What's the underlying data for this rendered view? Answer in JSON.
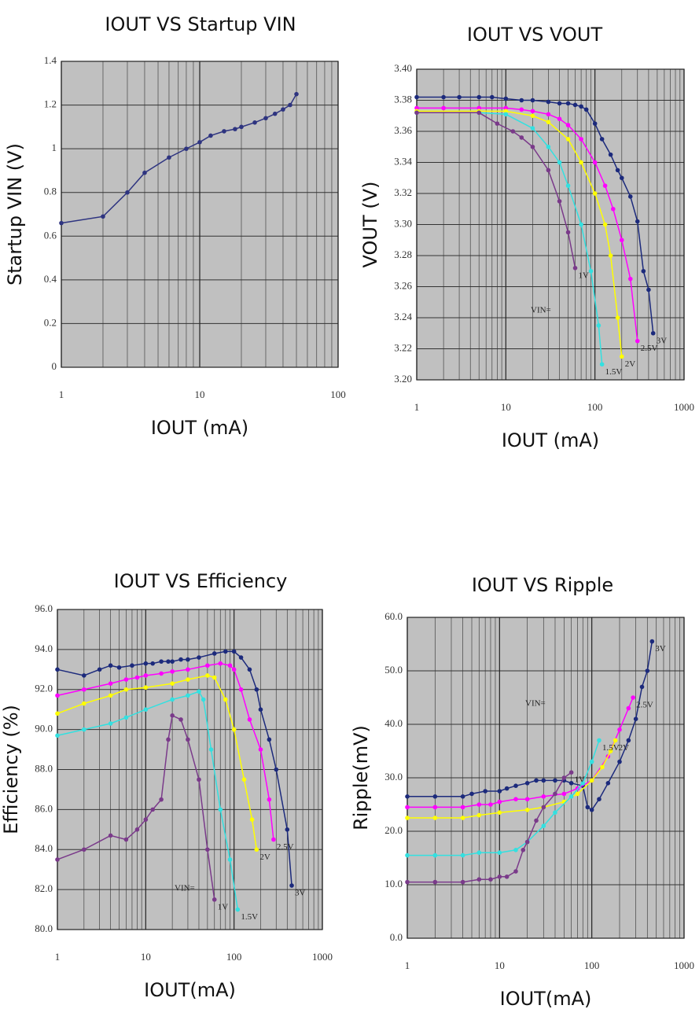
{
  "chart_data": [
    {
      "type": "line",
      "title": "IOUT VS Startup VIN",
      "xlabel": "IOUT (mA)",
      "ylabel": "Startup VIN (V)",
      "xscale": "log",
      "xlim": [
        1,
        100
      ],
      "xticks": [
        1,
        10,
        100
      ],
      "ylim": [
        0,
        1.4
      ],
      "yticks": [
        0,
        0.2,
        0.4,
        0.6,
        0.8,
        1,
        1.2,
        1.4
      ],
      "grid": true,
      "series": [
        {
          "color": "#2e3480",
          "x": [
            1,
            2,
            3,
            4,
            6,
            8,
            10,
            12,
            15,
            18,
            20,
            25,
            30,
            35,
            40,
            45,
            50
          ],
          "values": [
            0.66,
            0.69,
            0.8,
            0.89,
            0.96,
            1.0,
            1.03,
            1.06,
            1.08,
            1.09,
            1.1,
            1.12,
            1.14,
            1.16,
            1.18,
            1.2,
            1.25
          ]
        }
      ]
    },
    {
      "type": "line",
      "title": "IOUT VS VOUT",
      "xlabel": "IOUT (mA)",
      "ylabel": "VOUT (V)",
      "annotation": "VIN=",
      "xscale": "log",
      "xlim": [
        1,
        1000
      ],
      "xticks": [
        1,
        10,
        100,
        1000
      ],
      "ylim": [
        3.2,
        3.4
      ],
      "yticks": [
        {
          "value": 3.2,
          "label": "3.20"
        },
        {
          "value": 3.22,
          "label": "3.22"
        },
        {
          "value": 3.24,
          "label": "3.24"
        },
        {
          "value": 3.26,
          "label": "3.26"
        },
        {
          "value": 3.28,
          "label": "3.28"
        },
        {
          "value": 3.3,
          "label": "3.30"
        },
        {
          "value": 3.32,
          "label": "3.32"
        },
        {
          "value": 3.34,
          "label": "3.34"
        },
        {
          "value": 3.36,
          "label": "3.36"
        },
        {
          "value": 3.38,
          "label": "3.38"
        },
        {
          "value": 3.4,
          "label": "3.40"
        }
      ],
      "grid": true,
      "series": [
        {
          "name": "3V",
          "color": "#1c2a7c",
          "x": [
            1,
            2,
            3,
            5,
            7,
            10,
            15,
            20,
            30,
            40,
            50,
            60,
            70,
            80,
            100,
            120,
            150,
            180,
            200,
            250,
            300,
            350,
            400,
            450
          ],
          "values": [
            3.382,
            3.382,
            3.382,
            3.382,
            3.382,
            3.381,
            3.38,
            3.38,
            3.379,
            3.378,
            3.378,
            3.377,
            3.376,
            3.374,
            3.365,
            3.355,
            3.345,
            3.335,
            3.33,
            3.318,
            3.302,
            3.27,
            3.258,
            3.23
          ]
        },
        {
          "name": "2.5V",
          "color": "#ff00ff",
          "x": [
            1,
            2,
            5,
            10,
            15,
            20,
            30,
            40,
            50,
            70,
            100,
            130,
            160,
            200,
            250,
            300
          ],
          "values": [
            3.375,
            3.375,
            3.375,
            3.375,
            3.374,
            3.373,
            3.371,
            3.368,
            3.364,
            3.355,
            3.34,
            3.325,
            3.31,
            3.29,
            3.265,
            3.225
          ]
        },
        {
          "name": "2V",
          "color": "#ffff00",
          "x": [
            1,
            5,
            10,
            20,
            30,
            50,
            70,
            100,
            130,
            150,
            180,
            200
          ],
          "values": [
            3.373,
            3.373,
            3.373,
            3.37,
            3.366,
            3.355,
            3.34,
            3.32,
            3.3,
            3.28,
            3.24,
            3.215
          ]
        },
        {
          "name": "1.5V",
          "color": "#33e0e0",
          "x": [
            1,
            5,
            10,
            20,
            30,
            40,
            50,
            70,
            90,
            110,
            120
          ],
          "values": [
            3.372,
            3.372,
            3.371,
            3.362,
            3.35,
            3.34,
            3.325,
            3.3,
            3.27,
            3.235,
            3.21
          ]
        },
        {
          "name": "1V",
          "color": "#7a3a8a",
          "x": [
            1,
            5,
            8,
            12,
            15,
            20,
            30,
            40,
            50,
            60
          ],
          "values": [
            3.372,
            3.372,
            3.365,
            3.36,
            3.356,
            3.35,
            3.335,
            3.315,
            3.295,
            3.272
          ]
        }
      ]
    },
    {
      "type": "line",
      "title": "IOUT VS Efficiency",
      "xlabel": "IOUT(mA)",
      "ylabel": "Efficiency (%)",
      "annotation": "VIN=",
      "xscale": "log",
      "xlim": [
        1,
        1000
      ],
      "xticks": [
        1,
        10,
        100,
        1000
      ],
      "ylim": [
        80,
        96
      ],
      "yticks": [
        {
          "value": 80,
          "label": "80.0"
        },
        {
          "value": 82,
          "label": "82.0"
        },
        {
          "value": 84,
          "label": "84.0"
        },
        {
          "value": 86,
          "label": "86.0"
        },
        {
          "value": 88,
          "label": "88.0"
        },
        {
          "value": 90,
          "label": "90.0"
        },
        {
          "value": 92,
          "label": "92.0"
        },
        {
          "value": 94,
          "label": "94.0"
        },
        {
          "value": 96,
          "label": "96.0"
        }
      ],
      "grid": true,
      "series": [
        {
          "name": "3V",
          "color": "#1c2a7c",
          "x": [
            1,
            2,
            3,
            4,
            5,
            7,
            10,
            12,
            15,
            18,
            20,
            25,
            30,
            40,
            60,
            80,
            100,
            120,
            150,
            180,
            200,
            250,
            300,
            400,
            450
          ],
          "values": [
            93.0,
            92.7,
            93.0,
            93.2,
            93.1,
            93.2,
            93.3,
            93.3,
            93.4,
            93.4,
            93.4,
            93.5,
            93.5,
            93.6,
            93.8,
            93.9,
            93.9,
            93.6,
            93.0,
            92.0,
            91.0,
            89.5,
            88.0,
            85.0,
            82.2
          ]
        },
        {
          "name": "2.5V",
          "color": "#ff00ff",
          "x": [
            1,
            2,
            4,
            6,
            8,
            10,
            15,
            20,
            30,
            50,
            70,
            90,
            100,
            120,
            150,
            200,
            250,
            280
          ],
          "values": [
            91.7,
            92.0,
            92.3,
            92.5,
            92.6,
            92.7,
            92.8,
            92.9,
            93.0,
            93.2,
            93.3,
            93.2,
            93.0,
            92.0,
            90.5,
            89.0,
            86.5,
            84.5
          ]
        },
        {
          "name": "2V",
          "color": "#ffff00",
          "x": [
            1,
            2,
            4,
            6,
            10,
            20,
            30,
            50,
            60,
            80,
            100,
            130,
            160,
            180
          ],
          "values": [
            90.8,
            91.3,
            91.7,
            92.0,
            92.1,
            92.3,
            92.5,
            92.7,
            92.6,
            91.5,
            90.0,
            87.5,
            85.5,
            84.0
          ]
        },
        {
          "name": "1.5V",
          "color": "#33e0e0",
          "x": [
            1,
            2,
            4,
            6,
            10,
            20,
            30,
            40,
            45,
            55,
            70,
            90,
            110
          ],
          "values": [
            89.7,
            90.0,
            90.3,
            90.6,
            91.0,
            91.5,
            91.7,
            91.9,
            91.5,
            89.0,
            86.0,
            83.5,
            81.0
          ]
        },
        {
          "name": "1V",
          "color": "#7a3a8a",
          "x": [
            1,
            2,
            4,
            6,
            8,
            10,
            12,
            15,
            18,
            20,
            25,
            30,
            40,
            50,
            60
          ],
          "values": [
            83.5,
            84.0,
            84.7,
            84.5,
            85.0,
            85.5,
            86.0,
            86.5,
            89.5,
            90.7,
            90.5,
            89.5,
            87.5,
            84.0,
            81.5
          ]
        }
      ]
    },
    {
      "type": "line",
      "title": "IOUT VS Ripple",
      "xlabel": "IOUT(mA)",
      "ylabel": "Ripple(mV)",
      "annotation": "VIN=",
      "xscale": "log",
      "xlim": [
        1,
        1000
      ],
      "xticks": [
        1,
        10,
        100,
        1000
      ],
      "ylim": [
        0,
        60
      ],
      "yticks": [
        {
          "value": 0,
          "label": "0.0"
        },
        {
          "value": 10,
          "label": "10.0"
        },
        {
          "value": 20,
          "label": "20.0"
        },
        {
          "value": 30,
          "label": "30.0"
        },
        {
          "value": 40,
          "label": "40.0"
        },
        {
          "value": 50,
          "label": "50.0"
        },
        {
          "value": 60,
          "label": "60.0"
        }
      ],
      "grid": true,
      "series": [
        {
          "name": "3V",
          "color": "#1c2a7c",
          "x": [
            1,
            2,
            4,
            5,
            7,
            10,
            12,
            15,
            20,
            25,
            30,
            40,
            50,
            60,
            80,
            90,
            100,
            120,
            150,
            200,
            250,
            300,
            350,
            400,
            450
          ],
          "values": [
            26.5,
            26.5,
            26.5,
            27,
            27.5,
            27.5,
            28,
            28.5,
            29,
            29.5,
            29.5,
            29.5,
            29.5,
            29.0,
            28.5,
            24.5,
            24.0,
            26,
            29,
            33,
            37,
            41,
            47,
            50,
            55.5
          ]
        },
        {
          "name": "2.5V",
          "color": "#ff00ff",
          "x": [
            1,
            2,
            4,
            6,
            8,
            10,
            15,
            20,
            30,
            50,
            70,
            100,
            150,
            200,
            250,
            280
          ],
          "values": [
            24.5,
            24.5,
            24.5,
            25,
            25,
            25.5,
            26,
            26,
            26.5,
            27,
            28,
            29.5,
            34,
            39,
            43,
            45
          ]
        },
        {
          "name": "2V",
          "color": "#ffff00",
          "x": [
            1,
            2,
            4,
            6,
            10,
            20,
            30,
            50,
            70,
            100,
            130,
            160,
            180
          ],
          "values": [
            22.5,
            22.5,
            22.5,
            23,
            23.5,
            24,
            24.5,
            25.5,
            27,
            29.5,
            32,
            35,
            37
          ]
        },
        {
          "name": "1.5V",
          "color": "#33e0e0",
          "x": [
            1,
            2,
            4,
            6,
            10,
            15,
            20,
            30,
            40,
            60,
            80,
            100,
            120
          ],
          "values": [
            15.5,
            15.5,
            15.5,
            16,
            16,
            16.5,
            18,
            21,
            23.5,
            26.5,
            29,
            33,
            37
          ]
        },
        {
          "name": "1V",
          "color": "#7a3a8a",
          "x": [
            1,
            2,
            4,
            6,
            8,
            10,
            12,
            15,
            18,
            20,
            25,
            30,
            40,
            50,
            60
          ],
          "values": [
            10.5,
            10.5,
            10.5,
            11,
            11,
            11.5,
            11.5,
            12.5,
            16.5,
            18,
            22,
            24.5,
            27,
            30,
            31
          ]
        }
      ]
    }
  ]
}
